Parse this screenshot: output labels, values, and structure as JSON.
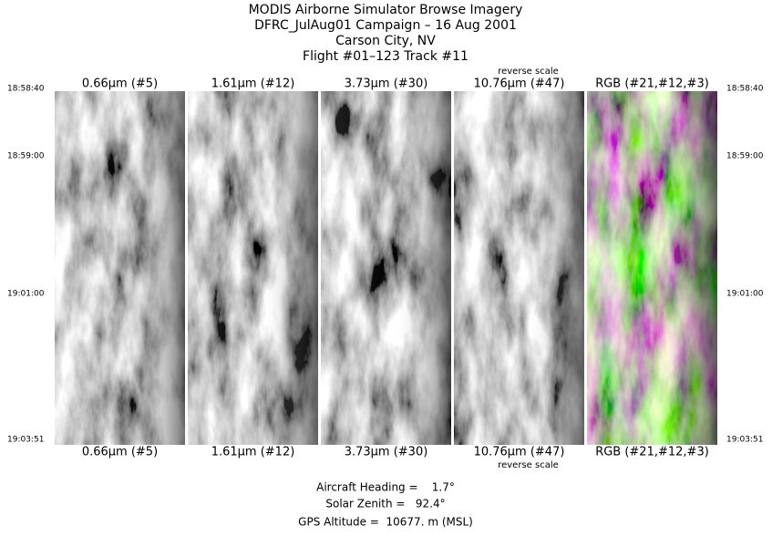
{
  "title": [
    "MODIS Airborne Simulator Browse Imagery",
    "DFRC_JulAug01 Campaign – 16 Aug 2001",
    "Carson City, NV",
    "Flight #01–123 Track #11"
  ],
  "panels": [
    {
      "label": "0.66μm (#5)",
      "mode": "gray"
    },
    {
      "label": "1.61μm (#12)",
      "mode": "gray"
    },
    {
      "label": "3.73μm (#30)",
      "mode": "gray"
    },
    {
      "label": "10.76μm (#47)",
      "mode": "gray",
      "note": "reverse scale"
    },
    {
      "label": "RGB (#21,#12,#3)",
      "mode": "rgb"
    }
  ],
  "time_labels": [
    "18:58:40",
    "18:59:00",
    "19:01:00",
    "19:03:51"
  ],
  "footer": [
    "Aircraft Heading =    1.7°",
    "Solar Zenith =   92.4°",
    "GPS Altitude =  10677. m (MSL)"
  ]
}
